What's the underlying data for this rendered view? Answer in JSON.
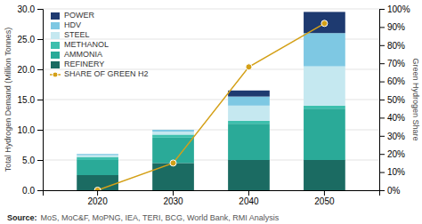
{
  "chart_data": {
    "type": "bar",
    "stacked": true,
    "categories": [
      "2020",
      "2030",
      "2040",
      "2050"
    ],
    "series": [
      {
        "name": "REFINERY",
        "color": "#1b6b62",
        "values": [
          2.5,
          4.5,
          5.0,
          5.0
        ]
      },
      {
        "name": "AMMONIA",
        "color": "#2aaa98",
        "values": [
          2.5,
          4.2,
          6.0,
          8.5
        ]
      },
      {
        "name": "METHANOL",
        "color": "#3dbfad",
        "values": [
          0.5,
          0.5,
          0.5,
          0.5
        ]
      },
      {
        "name": "STEEL",
        "color": "#c5e8f0",
        "values": [
          0.3,
          0.5,
          2.5,
          6.5
        ]
      },
      {
        "name": "HDV",
        "color": "#7ec8e3",
        "values": [
          0.2,
          0.3,
          1.5,
          5.5
        ]
      },
      {
        "name": "POWER",
        "color": "#1e3a70",
        "values": [
          0.0,
          0.0,
          1.0,
          3.5
        ]
      },
      {
        "name": "SHARE OF GREEN H2",
        "type": "line",
        "axis": "y2",
        "color": "#d4a017",
        "marker": "circle",
        "values": [
          0.0,
          15.0,
          68.0,
          92.0
        ]
      }
    ],
    "ylabel": "Total Hydrogen Demand (Million Tonnes)",
    "y2label": "Green Hydrogen Share",
    "ylim": [
      0,
      30
    ],
    "yticks": [
      {
        "value": 0,
        "label": "0.0"
      },
      {
        "value": 5,
        "label": "5.0"
      },
      {
        "value": 10,
        "label": "10.0"
      },
      {
        "value": 15,
        "label": "15.0"
      },
      {
        "value": 20,
        "label": "20.0"
      },
      {
        "value": 25,
        "label": "25.0"
      },
      {
        "value": 30,
        "label": "30.0"
      }
    ],
    "y2lim": [
      0,
      100
    ],
    "y2ticks": [
      {
        "value": 0,
        "label": "0%"
      },
      {
        "value": 10,
        "label": "10%"
      },
      {
        "value": 20,
        "label": "20%"
      },
      {
        "value": 30,
        "label": "30%"
      },
      {
        "value": 40,
        "label": "40%"
      },
      {
        "value": 50,
        "label": "50%"
      },
      {
        "value": 60,
        "label": "60%"
      },
      {
        "value": 70,
        "label": "70%"
      },
      {
        "value": 80,
        "label": "80%"
      },
      {
        "value": 90,
        "label": "90%"
      },
      {
        "value": 100,
        "label": "100%"
      }
    ],
    "grid": true,
    "legend": "upper left",
    "annotations": [
      "Source:",
      "MoS, MoC&F, MoPNG, IEA, TERI, BCG, World Bank, RMI Analysis"
    ]
  }
}
